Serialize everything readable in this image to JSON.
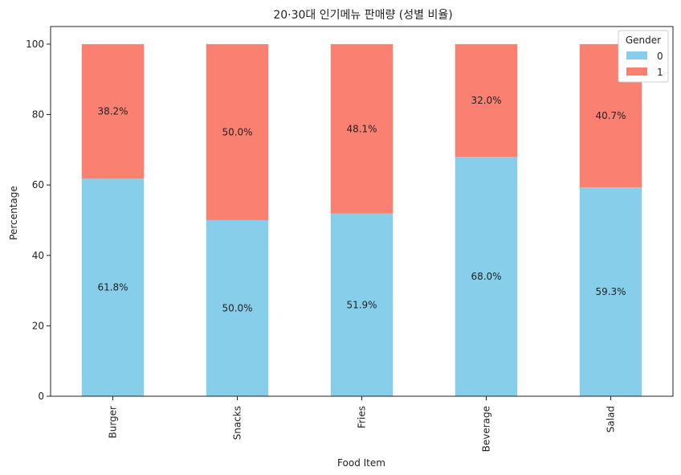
{
  "chart_data": {
    "type": "bar",
    "stacked": true,
    "title": "20·30대 인기메뉴 판매량 (성별 비율)",
    "xlabel": "Food Item",
    "ylabel": "Percentage",
    "categories": [
      "Burger",
      "Snacks",
      "Fries",
      "Beverage",
      "Salad"
    ],
    "series": [
      {
        "name": "0",
        "color": "#87CEEB",
        "values": [
          61.8,
          50.0,
          51.9,
          68.0,
          59.3
        ],
        "labels": [
          "61.8%",
          "50.0%",
          "51.9%",
          "68.0%",
          "59.3%"
        ]
      },
      {
        "name": "1",
        "color": "#FA8072",
        "values": [
          38.2,
          50.0,
          48.1,
          32.0,
          40.7
        ],
        "labels": [
          "38.2%",
          "50.0%",
          "48.1%",
          "32.0%",
          "40.7%"
        ]
      }
    ],
    "ylim": [
      0,
      105
    ],
    "yticks": [
      0,
      20,
      40,
      60,
      80,
      100
    ],
    "legend": {
      "title": "Gender",
      "placement": "top-right"
    },
    "grid": false
  }
}
